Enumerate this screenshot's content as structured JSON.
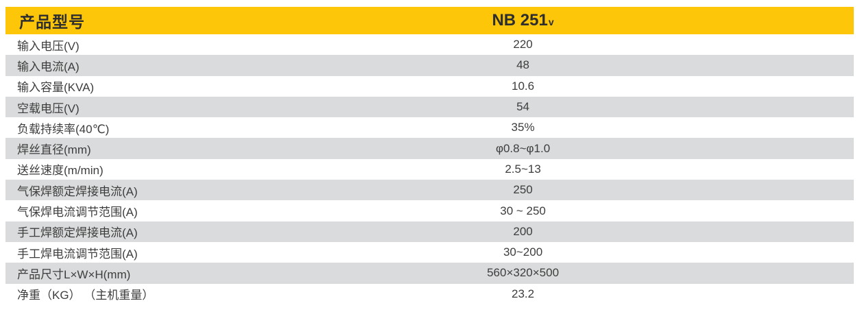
{
  "colors": {
    "header_bg": "#fdc609",
    "stripe_bg": "#dadbdc",
    "row_bg": "#ffffff",
    "header_text": "#2e2e2e",
    "row_text": "#3d3d3d"
  },
  "header": {
    "label": "产品型号",
    "model": "NB 251",
    "model_suffix": "v"
  },
  "rows": [
    {
      "label": "输入电压(V)",
      "value": "220"
    },
    {
      "label": "输入电流(A)",
      "value": "48"
    },
    {
      "label": "输入容量(KVA)",
      "value": "10.6"
    },
    {
      "label": "空载电压(V)",
      "value": "54"
    },
    {
      "label": "负载持续率(40℃)",
      "value": "35%"
    },
    {
      "label": "焊丝直径(mm)",
      "value": "φ0.8~φ1.0"
    },
    {
      "label": "送丝速度(m/min)",
      "value": "2.5~13"
    },
    {
      "label": "气保焊额定焊接电流(A)",
      "value": "250"
    },
    {
      "label": "气保焊电流调节范围(A)",
      "value": "30 ~ 250"
    },
    {
      "label": "手工焊额定焊接电流(A)",
      "value": "200"
    },
    {
      "label": "手工焊电流调节范围(A)",
      "value": "30~200"
    },
    {
      "label": "产品尺寸L×W×H(mm)",
      "value": "560×320×500"
    },
    {
      "label": "净重（KG） （主机重量）",
      "value": "23.2"
    }
  ]
}
